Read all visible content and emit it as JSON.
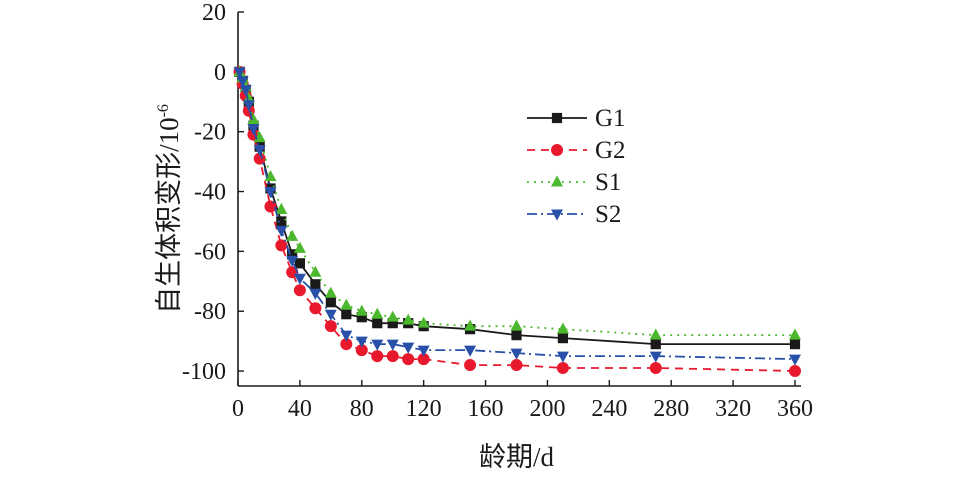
{
  "chart_data": {
    "type": "line",
    "xlabel": "龄期/d",
    "ylabel": "自生体积变形/10",
    "ylabel_exponent": "-6",
    "xlim": [
      0,
      360
    ],
    "ylim": [
      -105,
      20
    ],
    "x_ticks": [
      0,
      40,
      80,
      120,
      160,
      200,
      240,
      280,
      320,
      360
    ],
    "y_ticks": [
      20,
      0,
      -20,
      -40,
      -60,
      -80,
      -100
    ],
    "grid": false,
    "legend_position": "right",
    "series": [
      {
        "name": "G1",
        "color": "#1a1a1a",
        "marker": "square",
        "dash": "solid",
        "x": [
          1,
          3,
          5,
          7,
          10,
          14,
          21,
          28,
          35,
          40,
          50,
          60,
          70,
          80,
          90,
          100,
          110,
          120,
          150,
          180,
          210,
          270,
          360
        ],
        "y": [
          0,
          -3,
          -6,
          -10,
          -18,
          -25,
          -39,
          -50,
          -61,
          -64,
          -71,
          -77,
          -81,
          -82,
          -84,
          -84,
          -84,
          -85,
          -86,
          -88,
          -89,
          -91,
          -91
        ]
      },
      {
        "name": "G2",
        "color": "#e8192c",
        "marker": "circle",
        "dash": "8,6",
        "x": [
          1,
          3,
          5,
          7,
          10,
          14,
          21,
          28,
          35,
          40,
          50,
          60,
          70,
          80,
          90,
          100,
          110,
          120,
          150,
          180,
          210,
          270,
          360
        ],
        "y": [
          0,
          -4,
          -8,
          -13,
          -21,
          -29,
          -45,
          -58,
          -67,
          -73,
          -79,
          -85,
          -91,
          -93,
          -95,
          -95,
          -96,
          -96,
          -98,
          -98,
          -99,
          -99,
          -100
        ]
      },
      {
        "name": "S1",
        "color": "#4cb82e",
        "marker": "triangle-up",
        "dash": "2,5",
        "x": [
          1,
          3,
          5,
          7,
          10,
          14,
          21,
          28,
          35,
          40,
          50,
          60,
          70,
          80,
          90,
          100,
          110,
          120,
          150,
          180,
          210,
          270,
          360
        ],
        "y": [
          0,
          -2,
          -5,
          -9,
          -16,
          -22,
          -35,
          -46,
          -55,
          -59,
          -67,
          -74,
          -78,
          -80,
          -81,
          -82,
          -83,
          -84,
          -85,
          -85,
          -86,
          -88,
          -88
        ]
      },
      {
        "name": "S2",
        "color": "#2850a8",
        "marker": "triangle-down",
        "dash": "10,4,2,4",
        "x": [
          1,
          3,
          5,
          7,
          10,
          14,
          21,
          28,
          35,
          40,
          50,
          60,
          70,
          80,
          90,
          100,
          110,
          120,
          150,
          180,
          210,
          270,
          360
        ],
        "y": [
          0,
          -3,
          -6,
          -11,
          -19,
          -26,
          -40,
          -53,
          -63,
          -69,
          -74,
          -81,
          -88,
          -90,
          -91,
          -91,
          -92,
          -93,
          -93,
          -94,
          -95,
          -95,
          -96
        ]
      }
    ]
  }
}
